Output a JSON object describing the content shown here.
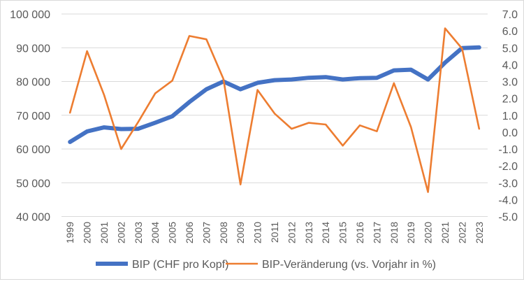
{
  "chart_data": {
    "type": "line",
    "title": "",
    "x": [
      "1999",
      "2000",
      "2001",
      "2002",
      "2003",
      "2004",
      "2005",
      "2006",
      "2007",
      "2008",
      "2009",
      "2010",
      "2011",
      "2012",
      "2013",
      "2014",
      "2015",
      "2016",
      "2017",
      "2018",
      "2019",
      "2020",
      "2021",
      "2022",
      "2023"
    ],
    "y_left": {
      "range": [
        40000,
        100000
      ],
      "ticks": [
        40000,
        50000,
        60000,
        70000,
        80000,
        90000,
        100000
      ],
      "tick_labels": [
        "40 000",
        "50 000",
        "60 000",
        "70 000",
        "80 000",
        "90 000",
        "100 000"
      ]
    },
    "y_right": {
      "range": [
        -5,
        7
      ],
      "ticks": [
        -5,
        -4,
        -3,
        -2,
        -1,
        0,
        1,
        2,
        3,
        4,
        5,
        6,
        7
      ],
      "tick_labels": [
        "-5.0",
        "-4.0",
        "-3.0",
        "-2.0",
        "-1.0",
        "0.0",
        "1.0",
        "2.0",
        "3.0",
        "4.0",
        "5.0",
        "6.0",
        "7.0"
      ]
    },
    "grid": true,
    "legend_position": "bottom",
    "series": [
      {
        "name": "BIP (CHF pro Kopf)",
        "axis": "left",
        "color": "#4472C4",
        "values": [
          62100,
          65200,
          66400,
          65900,
          66000,
          67800,
          69700,
          73900,
          77700,
          80000,
          77700,
          79600,
          80400,
          80600,
          81100,
          81300,
          80600,
          81000,
          81100,
          83300,
          83500,
          80600,
          85600,
          89900,
          90100
        ]
      },
      {
        "name": "BIP-Veränderung (vs. Vorjahr in %)",
        "axis": "right",
        "color": "#ED7D31",
        "values": [
          1.15,
          4.8,
          2.2,
          -1.0,
          0.6,
          2.3,
          3.05,
          5.7,
          5.5,
          3.15,
          -3.1,
          2.5,
          1.1,
          0.2,
          0.55,
          0.45,
          -0.8,
          0.4,
          0.05,
          2.9,
          0.3,
          -3.55,
          6.15,
          4.95,
          0.2
        ]
      }
    ]
  }
}
